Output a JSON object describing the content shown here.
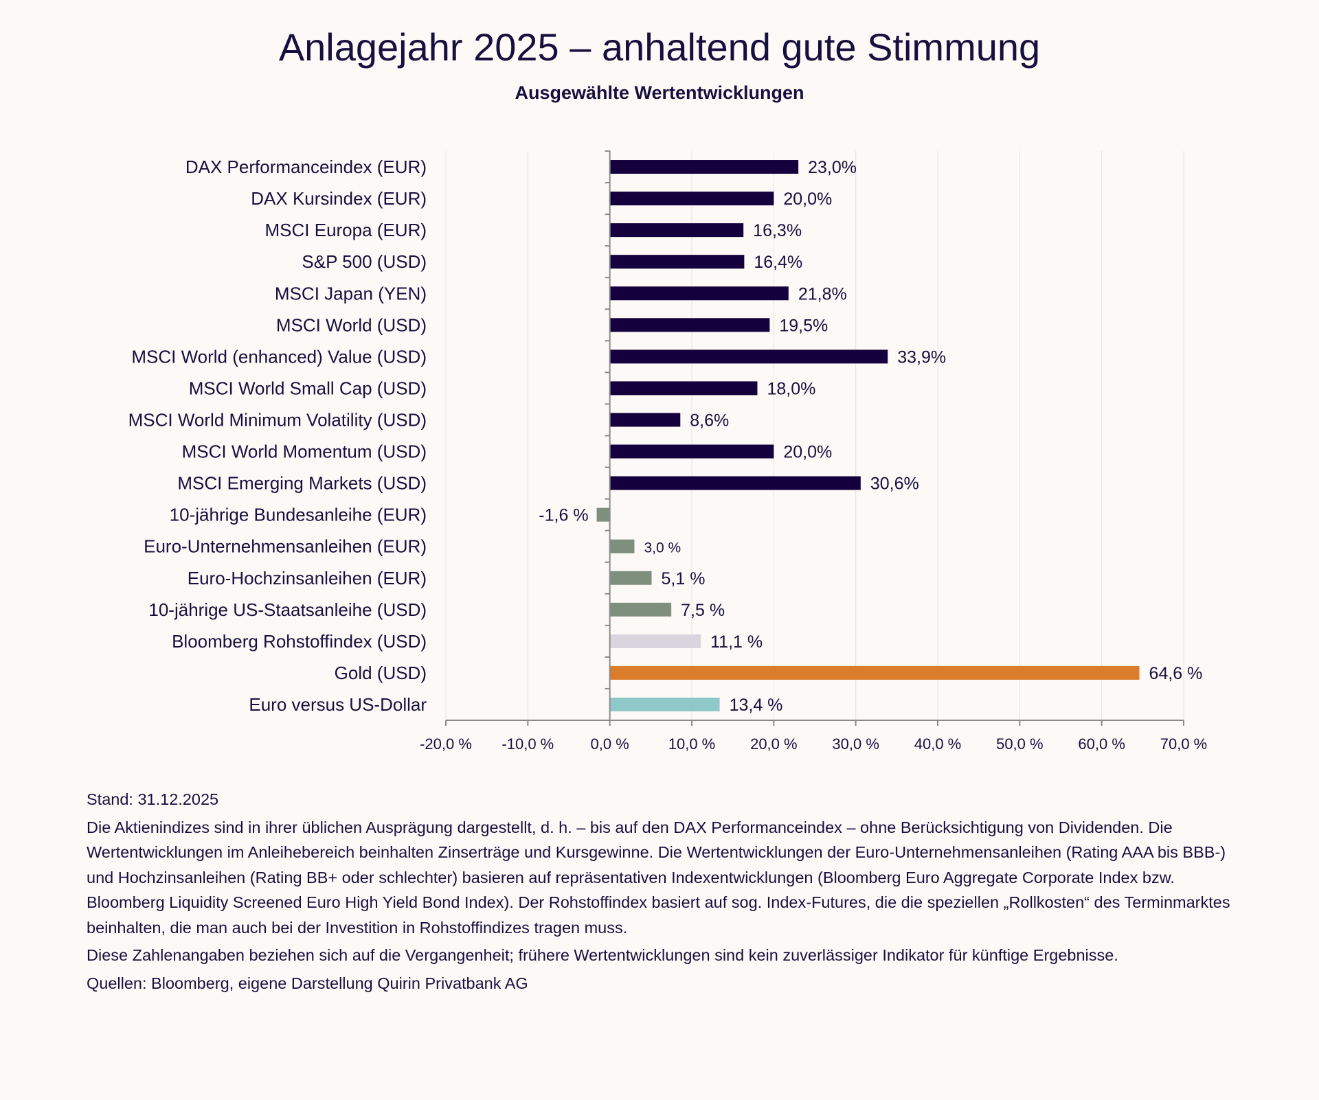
{
  "title": "Anlagejahr 2025 – anhaltend gute Stimmung",
  "subtitle": "Ausgewählte Wertentwicklungen",
  "chart_data": {
    "type": "bar",
    "orientation": "horizontal",
    "categories": [
      "DAX Performanceindex (EUR)",
      "DAX Kursindex (EUR)",
      "MSCI Europa (EUR)",
      "S&P 500 (USD)",
      "MSCI Japan (YEN)",
      "MSCI World (USD)",
      "MSCI World (enhanced) Value (USD)",
      "MSCI World Small Cap (USD)",
      "MSCI World Minimum Volatility (USD)",
      "MSCI World Momentum (USD)",
      "MSCI Emerging Markets (USD)",
      "10-jährige Bundesanleihe (EUR)",
      "Euro-Unternehmensanleihen (EUR)",
      "Euro-Hochzinsanleihen (EUR)",
      "10-jährige US-Staatsanleihe (USD)",
      "Bloomberg Rohstoffindex (USD)",
      "Gold (USD)",
      "Euro versus US-Dollar"
    ],
    "values": [
      23.0,
      20.0,
      16.3,
      16.4,
      21.8,
      19.5,
      33.9,
      18.0,
      8.6,
      20.0,
      30.6,
      -1.6,
      3.0,
      5.1,
      7.5,
      11.1,
      64.6,
      13.4
    ],
    "data_labels": [
      "23,0%",
      "20,0%",
      "16,3%",
      "16,4%",
      "21,8%",
      "19,5%",
      "33,9%",
      "18,0%",
      "8,6%",
      "20,0%",
      "30,6%",
      "-1,6 %",
      "3,0 %",
      "5,1 %",
      "7,5 %",
      "11,1 %",
      "64,6 %",
      "13,4 %"
    ],
    "colors": [
      "#14003c",
      "#14003c",
      "#14003c",
      "#14003c",
      "#14003c",
      "#14003c",
      "#14003c",
      "#14003c",
      "#14003c",
      "#14003c",
      "#14003c",
      "#7f8f7e",
      "#7f8f7e",
      "#7f8f7e",
      "#7f8f7e",
      "#d9d5de",
      "#db7d2a",
      "#8fc8c8"
    ],
    "xlim": [
      -20,
      70
    ],
    "xticks": [
      -20,
      -10,
      0,
      10,
      20,
      30,
      40,
      50,
      60,
      70
    ],
    "xtick_labels": [
      "-20,0 %",
      "-10,0 %",
      "0,0 %",
      "10,0 %",
      "20,0 %",
      "30,0 %",
      "40,0 %",
      "50,0 %",
      "60,0 %",
      "70,0 %"
    ],
    "grid": true,
    "title": "Ausgewählte Wertentwicklungen",
    "xlabel": "",
    "ylabel": ""
  },
  "notes": {
    "date": "Stand: 31.12.2025",
    "paragraph1": "Die Aktienindizes sind in ihrer üblichen Ausprägung dargestellt, d. h. – bis auf den DAX Performanceindex – ohne Berücksichtigung von Dividenden. Die Wertentwicklungen im Anleihebereich beinhalten Zinserträge und Kursgewinne. Die Wertentwicklungen der Euro-Unternehmensanleihen (Rating AAA bis BBB-) und Hochzinsanleihen (Rating BB+ oder schlechter) basieren auf repräsentativen Indexentwicklungen (Bloomberg Euro Aggregate Corporate Index bzw. Bloomberg Liquidity Screened Euro High Yield Bond Index). Der Rohstoffindex basiert auf sog. Index-Futures, die die speziellen „Rollkosten“ des Terminmarktes beinhalten, die man auch bei der Investition in Rohstoffindizes tragen muss.",
    "paragraph2": "Diese Zahlenangaben beziehen sich auf die Vergangenheit; frühere Wertentwicklungen sind kein zuverlässiger Indikator für künftige Ergebnisse.",
    "sources": "Quellen: Bloomberg, eigene Darstellung Quirin Privatbank AG"
  }
}
